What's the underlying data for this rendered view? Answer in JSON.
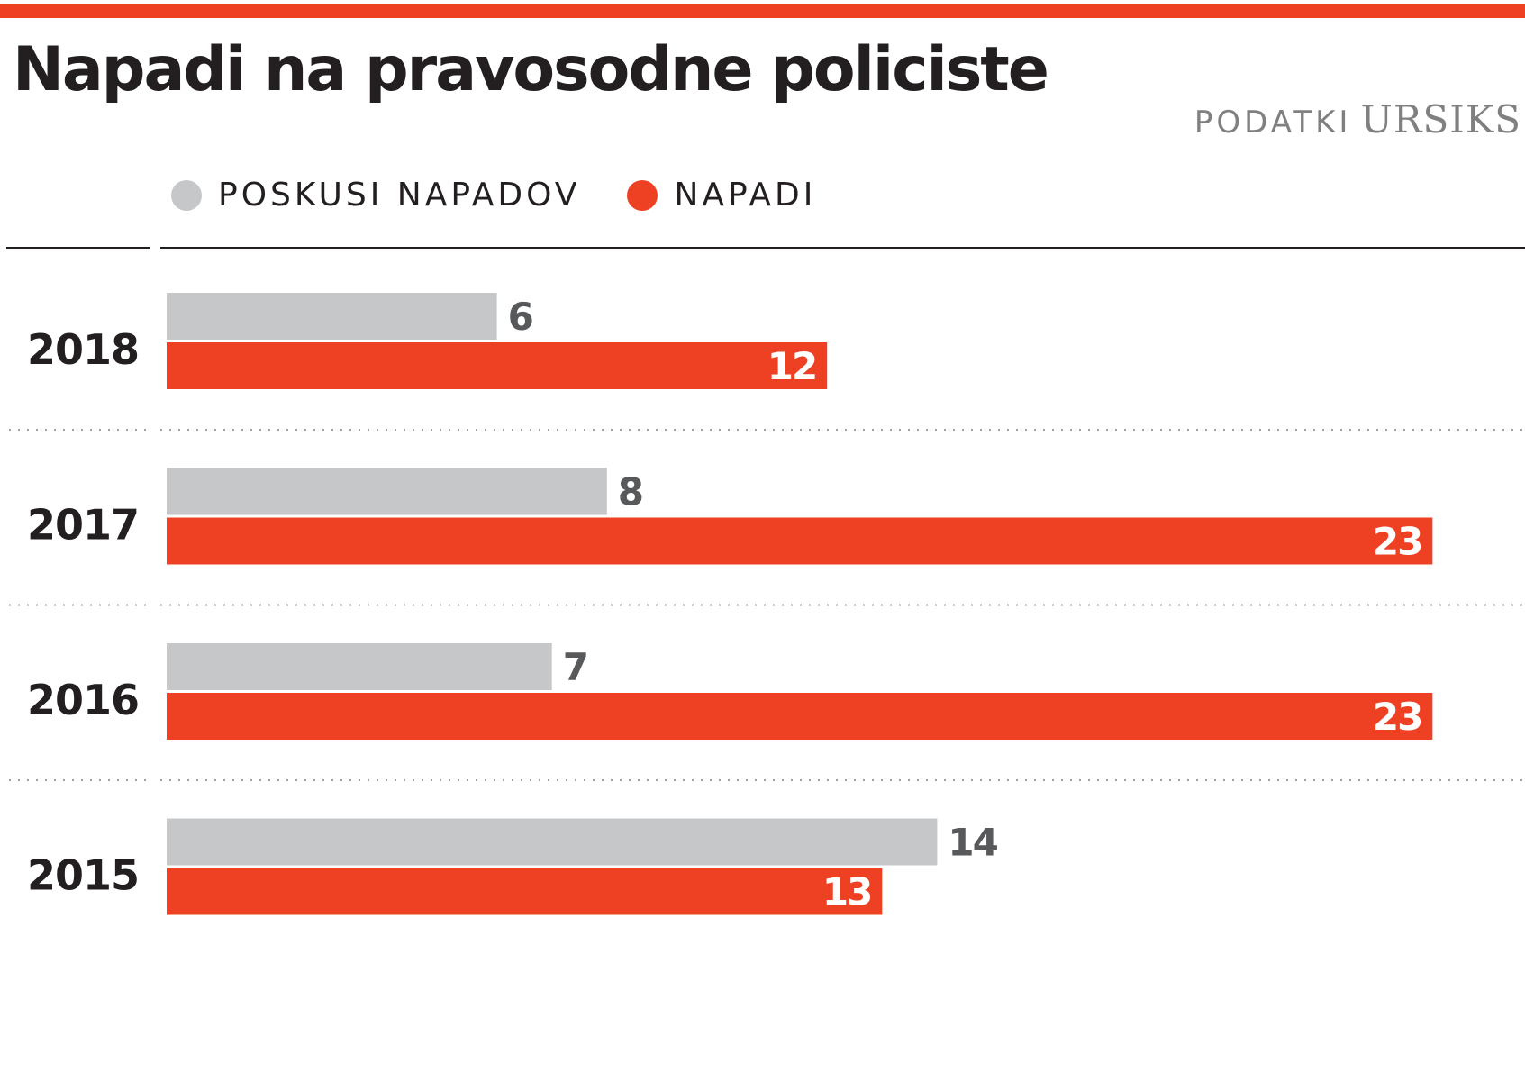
{
  "colors": {
    "accent": "#ee4124",
    "secondary": "#c6c7c9",
    "text": "#231f20",
    "value_dark": "#58595b",
    "value_light": "#ffffff",
    "source": "#808080"
  },
  "header": {
    "title": "Napadi na pravosodne policiste",
    "source_label": "PODATKI",
    "source_name": "URSIKS"
  },
  "chart_data": {
    "type": "bar",
    "orientation": "horizontal",
    "title": "Napadi na pravosodne policiste",
    "categories": [
      "2018",
      "2017",
      "2016",
      "2015"
    ],
    "series": [
      {
        "name": "POSKUSI NAPADOV",
        "color": "#c6c7c9",
        "values": [
          6,
          8,
          7,
          14
        ]
      },
      {
        "name": "NAPADI",
        "color": "#ee4124",
        "values": [
          12,
          23,
          23,
          13
        ]
      }
    ],
    "xlim": [
      0,
      24
    ],
    "legend_position": "top-left",
    "grid": false,
    "data_labels": true
  }
}
